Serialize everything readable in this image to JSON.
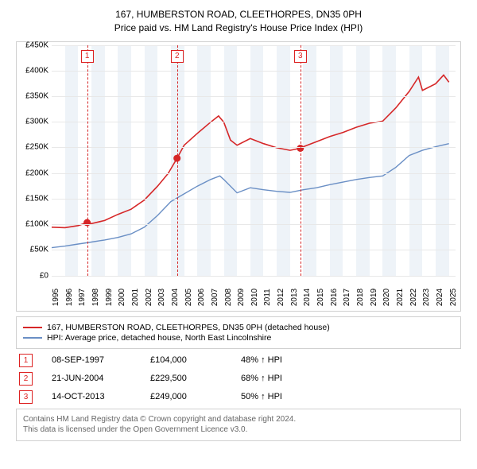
{
  "title": {
    "line1": "167, HUMBERSTON ROAD, CLEETHORPES, DN35 0PH",
    "line2": "Price paid vs. HM Land Registry's House Price Index (HPI)"
  },
  "chart": {
    "type": "line",
    "background_color": "#ffffff",
    "alt_band_color": "#eef3f8",
    "grid_color": "#e8e8e8",
    "axis_fontsize": 10,
    "xlim": [
      1995,
      2025.5
    ],
    "ylim": [
      0,
      450000
    ],
    "ytick_step": 50000,
    "yticks": [
      "£0",
      "£50K",
      "£100K",
      "£150K",
      "£200K",
      "£250K",
      "£300K",
      "£350K",
      "£400K",
      "£450K"
    ],
    "xticks": [
      "1995",
      "1996",
      "1997",
      "1998",
      "1999",
      "2000",
      "2001",
      "2002",
      "2003",
      "2004",
      "2005",
      "2006",
      "2007",
      "2008",
      "2009",
      "2010",
      "2011",
      "2012",
      "2013",
      "2014",
      "2015",
      "2016",
      "2017",
      "2018",
      "2019",
      "2020",
      "2021",
      "2022",
      "2023",
      "2024",
      "2025"
    ],
    "series": [
      {
        "name": "167, HUMBERSTON ROAD, CLEETHORPES, DN35 0PH (detached house)",
        "color": "#d62728",
        "line_width": 1.6,
        "data": [
          [
            1995,
            95000
          ],
          [
            1996,
            94000
          ],
          [
            1997,
            98000
          ],
          [
            1997.68,
            104000
          ],
          [
            1998,
            102000
          ],
          [
            1999,
            108000
          ],
          [
            2000,
            120000
          ],
          [
            2001,
            130000
          ],
          [
            2002,
            148000
          ],
          [
            2003,
            175000
          ],
          [
            2003.8,
            200000
          ],
          [
            2004.47,
            229500
          ],
          [
            2005,
            255000
          ],
          [
            2006,
            278000
          ],
          [
            2007,
            300000
          ],
          [
            2007.6,
            312000
          ],
          [
            2008,
            300000
          ],
          [
            2008.5,
            265000
          ],
          [
            2009,
            255000
          ],
          [
            2010,
            268000
          ],
          [
            2011,
            258000
          ],
          [
            2012,
            250000
          ],
          [
            2013,
            245000
          ],
          [
            2013.78,
            249000
          ],
          [
            2014,
            252000
          ],
          [
            2015,
            262000
          ],
          [
            2016,
            272000
          ],
          [
            2017,
            280000
          ],
          [
            2018,
            290000
          ],
          [
            2019,
            298000
          ],
          [
            2020,
            302000
          ],
          [
            2021,
            328000
          ],
          [
            2022,
            360000
          ],
          [
            2022.7,
            388000
          ],
          [
            2023,
            362000
          ],
          [
            2024,
            375000
          ],
          [
            2024.6,
            392000
          ],
          [
            2025,
            378000
          ]
        ]
      },
      {
        "name": "HPI: Average price, detached house, North East Lincolnshire",
        "color": "#6a8fc5",
        "line_width": 1.4,
        "data": [
          [
            1995,
            55000
          ],
          [
            1996,
            58000
          ],
          [
            1997,
            62000
          ],
          [
            1998,
            66000
          ],
          [
            1999,
            70000
          ],
          [
            2000,
            75000
          ],
          [
            2001,
            82000
          ],
          [
            2002,
            95000
          ],
          [
            2003,
            118000
          ],
          [
            2004,
            145000
          ],
          [
            2005,
            160000
          ],
          [
            2006,
            175000
          ],
          [
            2007,
            188000
          ],
          [
            2007.7,
            195000
          ],
          [
            2008,
            188000
          ],
          [
            2009,
            162000
          ],
          [
            2010,
            172000
          ],
          [
            2011,
            168000
          ],
          [
            2012,
            165000
          ],
          [
            2013,
            163000
          ],
          [
            2014,
            168000
          ],
          [
            2015,
            172000
          ],
          [
            2016,
            178000
          ],
          [
            2017,
            183000
          ],
          [
            2018,
            188000
          ],
          [
            2019,
            192000
          ],
          [
            2020,
            195000
          ],
          [
            2021,
            212000
          ],
          [
            2022,
            235000
          ],
          [
            2023,
            245000
          ],
          [
            2024,
            252000
          ],
          [
            2025,
            258000
          ]
        ]
      }
    ],
    "events": [
      {
        "n": "1",
        "year": 1997.68,
        "price": 104000
      },
      {
        "n": "2",
        "year": 2004.47,
        "price": 229500
      },
      {
        "n": "3",
        "year": 2013.78,
        "price": 249000
      }
    ],
    "event_line_color": "#d62728"
  },
  "legend": {
    "items": [
      {
        "label": "167, HUMBERSTON ROAD, CLEETHORPES, DN35 0PH (detached house)",
        "color": "#d62728"
      },
      {
        "label": "HPI: Average price, detached house, North East Lincolnshire",
        "color": "#6a8fc5"
      }
    ]
  },
  "event_table": [
    {
      "n": "1",
      "date": "08-SEP-1997",
      "price": "£104,000",
      "rel": "48% ↑ HPI"
    },
    {
      "n": "2",
      "date": "21-JUN-2004",
      "price": "£229,500",
      "rel": "68% ↑ HPI"
    },
    {
      "n": "3",
      "date": "14-OCT-2013",
      "price": "£249,000",
      "rel": "50% ↑ HPI"
    }
  ],
  "attribution": {
    "line1": "Contains HM Land Registry data © Crown copyright and database right 2024.",
    "line2": "This data is licensed under the Open Government Licence v3.0."
  }
}
